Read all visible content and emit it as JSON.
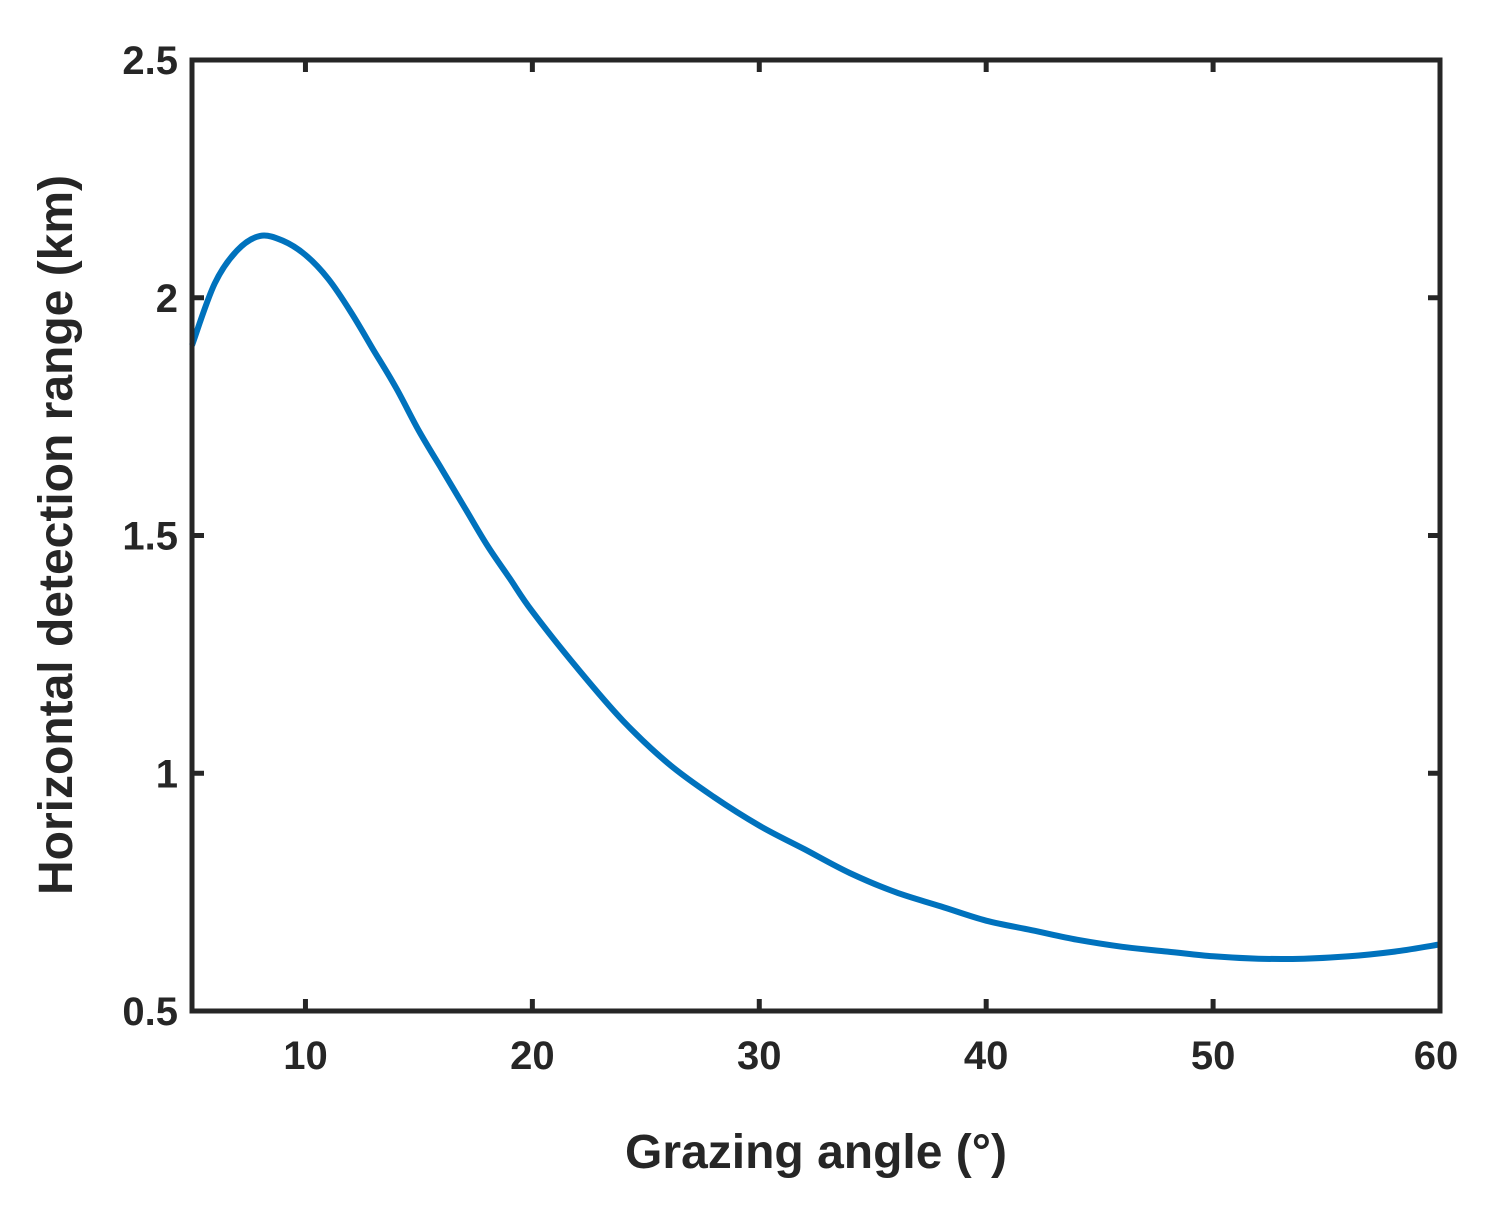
{
  "chart_data": {
    "type": "line",
    "title": "",
    "xlabel": "Grazing angle (°)",
    "ylabel": "Horizontal detection range (km)",
    "xlim": [
      5,
      60
    ],
    "ylim": [
      0.5,
      2.5
    ],
    "xticks": [
      10,
      20,
      30,
      40,
      50,
      60
    ],
    "yticks": [
      0.5,
      1,
      1.5,
      2,
      2.5
    ],
    "xtick_labels": [
      "10",
      "20",
      "30",
      "40",
      "50",
      "60"
    ],
    "ytick_labels": [
      "0.5",
      "1",
      "1.5",
      "2",
      "2.5"
    ],
    "grid": false,
    "legend": "none",
    "series": [
      {
        "color": "#0072BD",
        "x": [
          5,
          6,
          7,
          8,
          9,
          10,
          11,
          12,
          13,
          14,
          15,
          16,
          17,
          18,
          19,
          20,
          22,
          24,
          26,
          28,
          30,
          32,
          34,
          36,
          38,
          40,
          42,
          44,
          46,
          48,
          50,
          52,
          54,
          56,
          58,
          60
        ],
        "y": [
          1.9,
          2.03,
          2.1,
          2.13,
          2.12,
          2.09,
          2.04,
          1.97,
          1.89,
          1.81,
          1.72,
          1.64,
          1.56,
          1.48,
          1.41,
          1.34,
          1.22,
          1.11,
          1.02,
          0.95,
          0.89,
          0.84,
          0.79,
          0.75,
          0.72,
          0.69,
          0.67,
          0.65,
          0.635,
          0.625,
          0.615,
          0.61,
          0.61,
          0.615,
          0.625,
          0.64
        ]
      }
    ]
  }
}
